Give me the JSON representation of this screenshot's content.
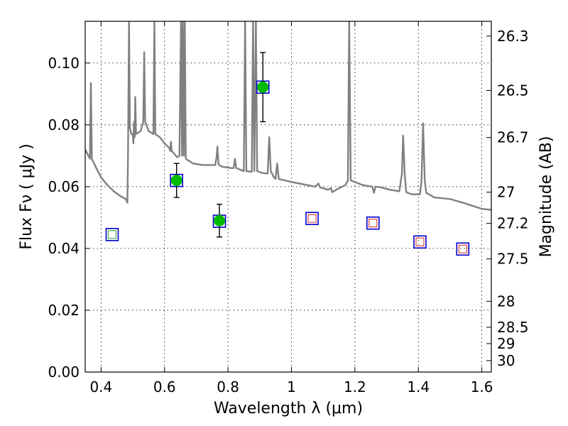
{
  "chart_data": {
    "type": "scatter",
    "xlabel": "Wavelength  λ (μm)",
    "ylabel": "Flux  Fν  ( μJy )",
    "ylabel2": "Magnitude (AB)",
    "xlim": [
      0.35,
      1.63
    ],
    "ylim": [
      0,
      0.1135
    ],
    "grid": true,
    "x_ticks": [
      0.4,
      0.6,
      0.8,
      1.0,
      1.2,
      1.4,
      1.6
    ],
    "x_tick_labels": [
      "0.4",
      "0.6",
      "0.8",
      "1",
      "1.2",
      "1.4",
      "1.6"
    ],
    "y_ticks": [
      0,
      0.02,
      0.04,
      0.06,
      0.08,
      0.1
    ],
    "y_tick_labels": [
      "0.00",
      "0.02",
      "0.04",
      "0.06",
      "0.08",
      "0.10"
    ],
    "mag_ticks": [
      {
        "flux": 0.1087,
        "label": "26.3"
      },
      {
        "flux": 0.0911,
        "label": "26.5"
      },
      {
        "flux": 0.0759,
        "label": "26.7"
      },
      {
        "flux": 0.0582,
        "label": "27"
      },
      {
        "flux": 0.0481,
        "label": "27.2"
      },
      {
        "flux": 0.0366,
        "label": "27.5"
      },
      {
        "flux": 0.0229,
        "label": "28"
      },
      {
        "flux": 0.0145,
        "label": "28.5"
      },
      {
        "flux": 0.0092,
        "label": "29"
      },
      {
        "flux": 0.0037,
        "label": "30"
      }
    ],
    "series": [
      {
        "marker": "open-square",
        "edge_color": "#0000cc",
        "points": [
          {
            "x": 0.435,
            "y": 0.0445
          },
          {
            "x": 0.638,
            "y": 0.062
          },
          {
            "x": 0.773,
            "y": 0.0488
          },
          {
            "x": 0.91,
            "y": 0.0922
          },
          {
            "x": 1.065,
            "y": 0.0497
          },
          {
            "x": 1.257,
            "y": 0.0482
          },
          {
            "x": 1.405,
            "y": 0.0421
          },
          {
            "x": 1.54,
            "y": 0.0398
          }
        ]
      },
      {
        "marker": "filled-circle",
        "color": "#00bb00",
        "points": [
          {
            "x": 0.638,
            "y": 0.062,
            "err": 0.0055
          },
          {
            "x": 0.773,
            "y": 0.049,
            "err": 0.0053
          },
          {
            "x": 0.91,
            "y": 0.0922,
            "err": 0.0112
          }
        ]
      },
      {
        "marker": "small-open-square",
        "color": "#33aa33",
        "points": [
          {
            "x": 0.435,
            "y": 0.0445
          }
        ]
      },
      {
        "marker": "small-open-square",
        "color": "#dd3333",
        "points": [
          {
            "x": 1.065,
            "y": 0.0497
          },
          {
            "x": 1.257,
            "y": 0.0482
          },
          {
            "x": 1.405,
            "y": 0.0421
          },
          {
            "x": 1.54,
            "y": 0.0398
          }
        ]
      }
    ],
    "spectrum": {
      "color": "#808080",
      "points": [
        [
          0.35,
          0.072
        ],
        [
          0.365,
          0.069
        ],
        [
          0.368,
          0.0935
        ],
        [
          0.371,
          0.069
        ],
        [
          0.385,
          0.066
        ],
        [
          0.4,
          0.063
        ],
        [
          0.42,
          0.0605
        ],
        [
          0.44,
          0.0585
        ],
        [
          0.46,
          0.057
        ],
        [
          0.478,
          0.056
        ],
        [
          0.483,
          0.0548
        ],
        [
          0.485,
          0.07
        ],
        [
          0.488,
          0.1135
        ],
        [
          0.491,
          0.079
        ],
        [
          0.496,
          0.077
        ],
        [
          0.5,
          0.077
        ],
        [
          0.502,
          0.074
        ],
        [
          0.504,
          0.081
        ],
        [
          0.506,
          0.076
        ],
        [
          0.508,
          0.089
        ],
        [
          0.51,
          0.077
        ],
        [
          0.525,
          0.078
        ],
        [
          0.53,
          0.08
        ],
        [
          0.533,
          0.081
        ],
        [
          0.536,
          0.1035
        ],
        [
          0.539,
          0.081
        ],
        [
          0.55,
          0.078
        ],
        [
          0.565,
          0.077
        ],
        [
          0.568,
          0.1135
        ],
        [
          0.571,
          0.077
        ],
        [
          0.585,
          0.076
        ],
        [
          0.6,
          0.074
        ],
        [
          0.615,
          0.0725
        ],
        [
          0.618,
          0.0715
        ],
        [
          0.62,
          0.0745
        ],
        [
          0.623,
          0.0715
        ],
        [
          0.64,
          0.0695
        ],
        [
          0.647,
          0.07
        ],
        [
          0.652,
          0.1135
        ],
        [
          0.655,
          0.07
        ],
        [
          0.658,
          0.1135
        ],
        [
          0.661,
          0.07
        ],
        [
          0.664,
          0.1135
        ],
        [
          0.667,
          0.069
        ],
        [
          0.69,
          0.0675
        ],
        [
          0.72,
          0.067
        ],
        [
          0.76,
          0.067
        ],
        [
          0.764,
          0.0695
        ],
        [
          0.767,
          0.073
        ],
        [
          0.77,
          0.0672
        ],
        [
          0.78,
          0.0665
        ],
        [
          0.81,
          0.066
        ],
        [
          0.818,
          0.066
        ],
        [
          0.822,
          0.069
        ],
        [
          0.826,
          0.066
        ],
        [
          0.85,
          0.065
        ],
        [
          0.854,
          0.1135
        ],
        [
          0.858,
          0.065
        ],
        [
          0.875,
          0.0648
        ],
        [
          0.879,
          0.1135
        ],
        [
          0.883,
          0.065
        ],
        [
          0.888,
          0.1135
        ],
        [
          0.892,
          0.065
        ],
        [
          0.905,
          0.0645
        ],
        [
          0.925,
          0.0642
        ],
        [
          0.93,
          0.076
        ],
        [
          0.935,
          0.065
        ],
        [
          0.945,
          0.063
        ],
        [
          0.95,
          0.0625
        ],
        [
          0.955,
          0.0675
        ],
        [
          0.96,
          0.0625
        ],
        [
          1.0,
          0.0615
        ],
        [
          1.05,
          0.0605
        ],
        [
          1.075,
          0.06
        ],
        [
          1.085,
          0.061
        ],
        [
          1.09,
          0.0598
        ],
        [
          1.115,
          0.059
        ],
        [
          1.125,
          0.0595
        ],
        [
          1.128,
          0.0582
        ],
        [
          1.15,
          0.0595
        ],
        [
          1.17,
          0.0605
        ],
        [
          1.178,
          0.062
        ],
        [
          1.182,
          0.1135
        ],
        [
          1.187,
          0.062
        ],
        [
          1.2,
          0.0615
        ],
        [
          1.225,
          0.0605
        ],
        [
          1.255,
          0.06
        ],
        [
          1.26,
          0.058
        ],
        [
          1.265,
          0.06
        ],
        [
          1.28,
          0.0598
        ],
        [
          1.31,
          0.059
        ],
        [
          1.34,
          0.0585
        ],
        [
          1.348,
          0.064
        ],
        [
          1.352,
          0.0765
        ],
        [
          1.357,
          0.064
        ],
        [
          1.362,
          0.0582
        ],
        [
          1.38,
          0.0575
        ],
        [
          1.405,
          0.0575
        ],
        [
          1.41,
          0.062
        ],
        [
          1.415,
          0.0805
        ],
        [
          1.42,
          0.062
        ],
        [
          1.425,
          0.058
        ],
        [
          1.45,
          0.0565
        ],
        [
          1.5,
          0.056
        ],
        [
          1.55,
          0.0545
        ],
        [
          1.6,
          0.0528
        ],
        [
          1.63,
          0.0525
        ]
      ]
    }
  }
}
